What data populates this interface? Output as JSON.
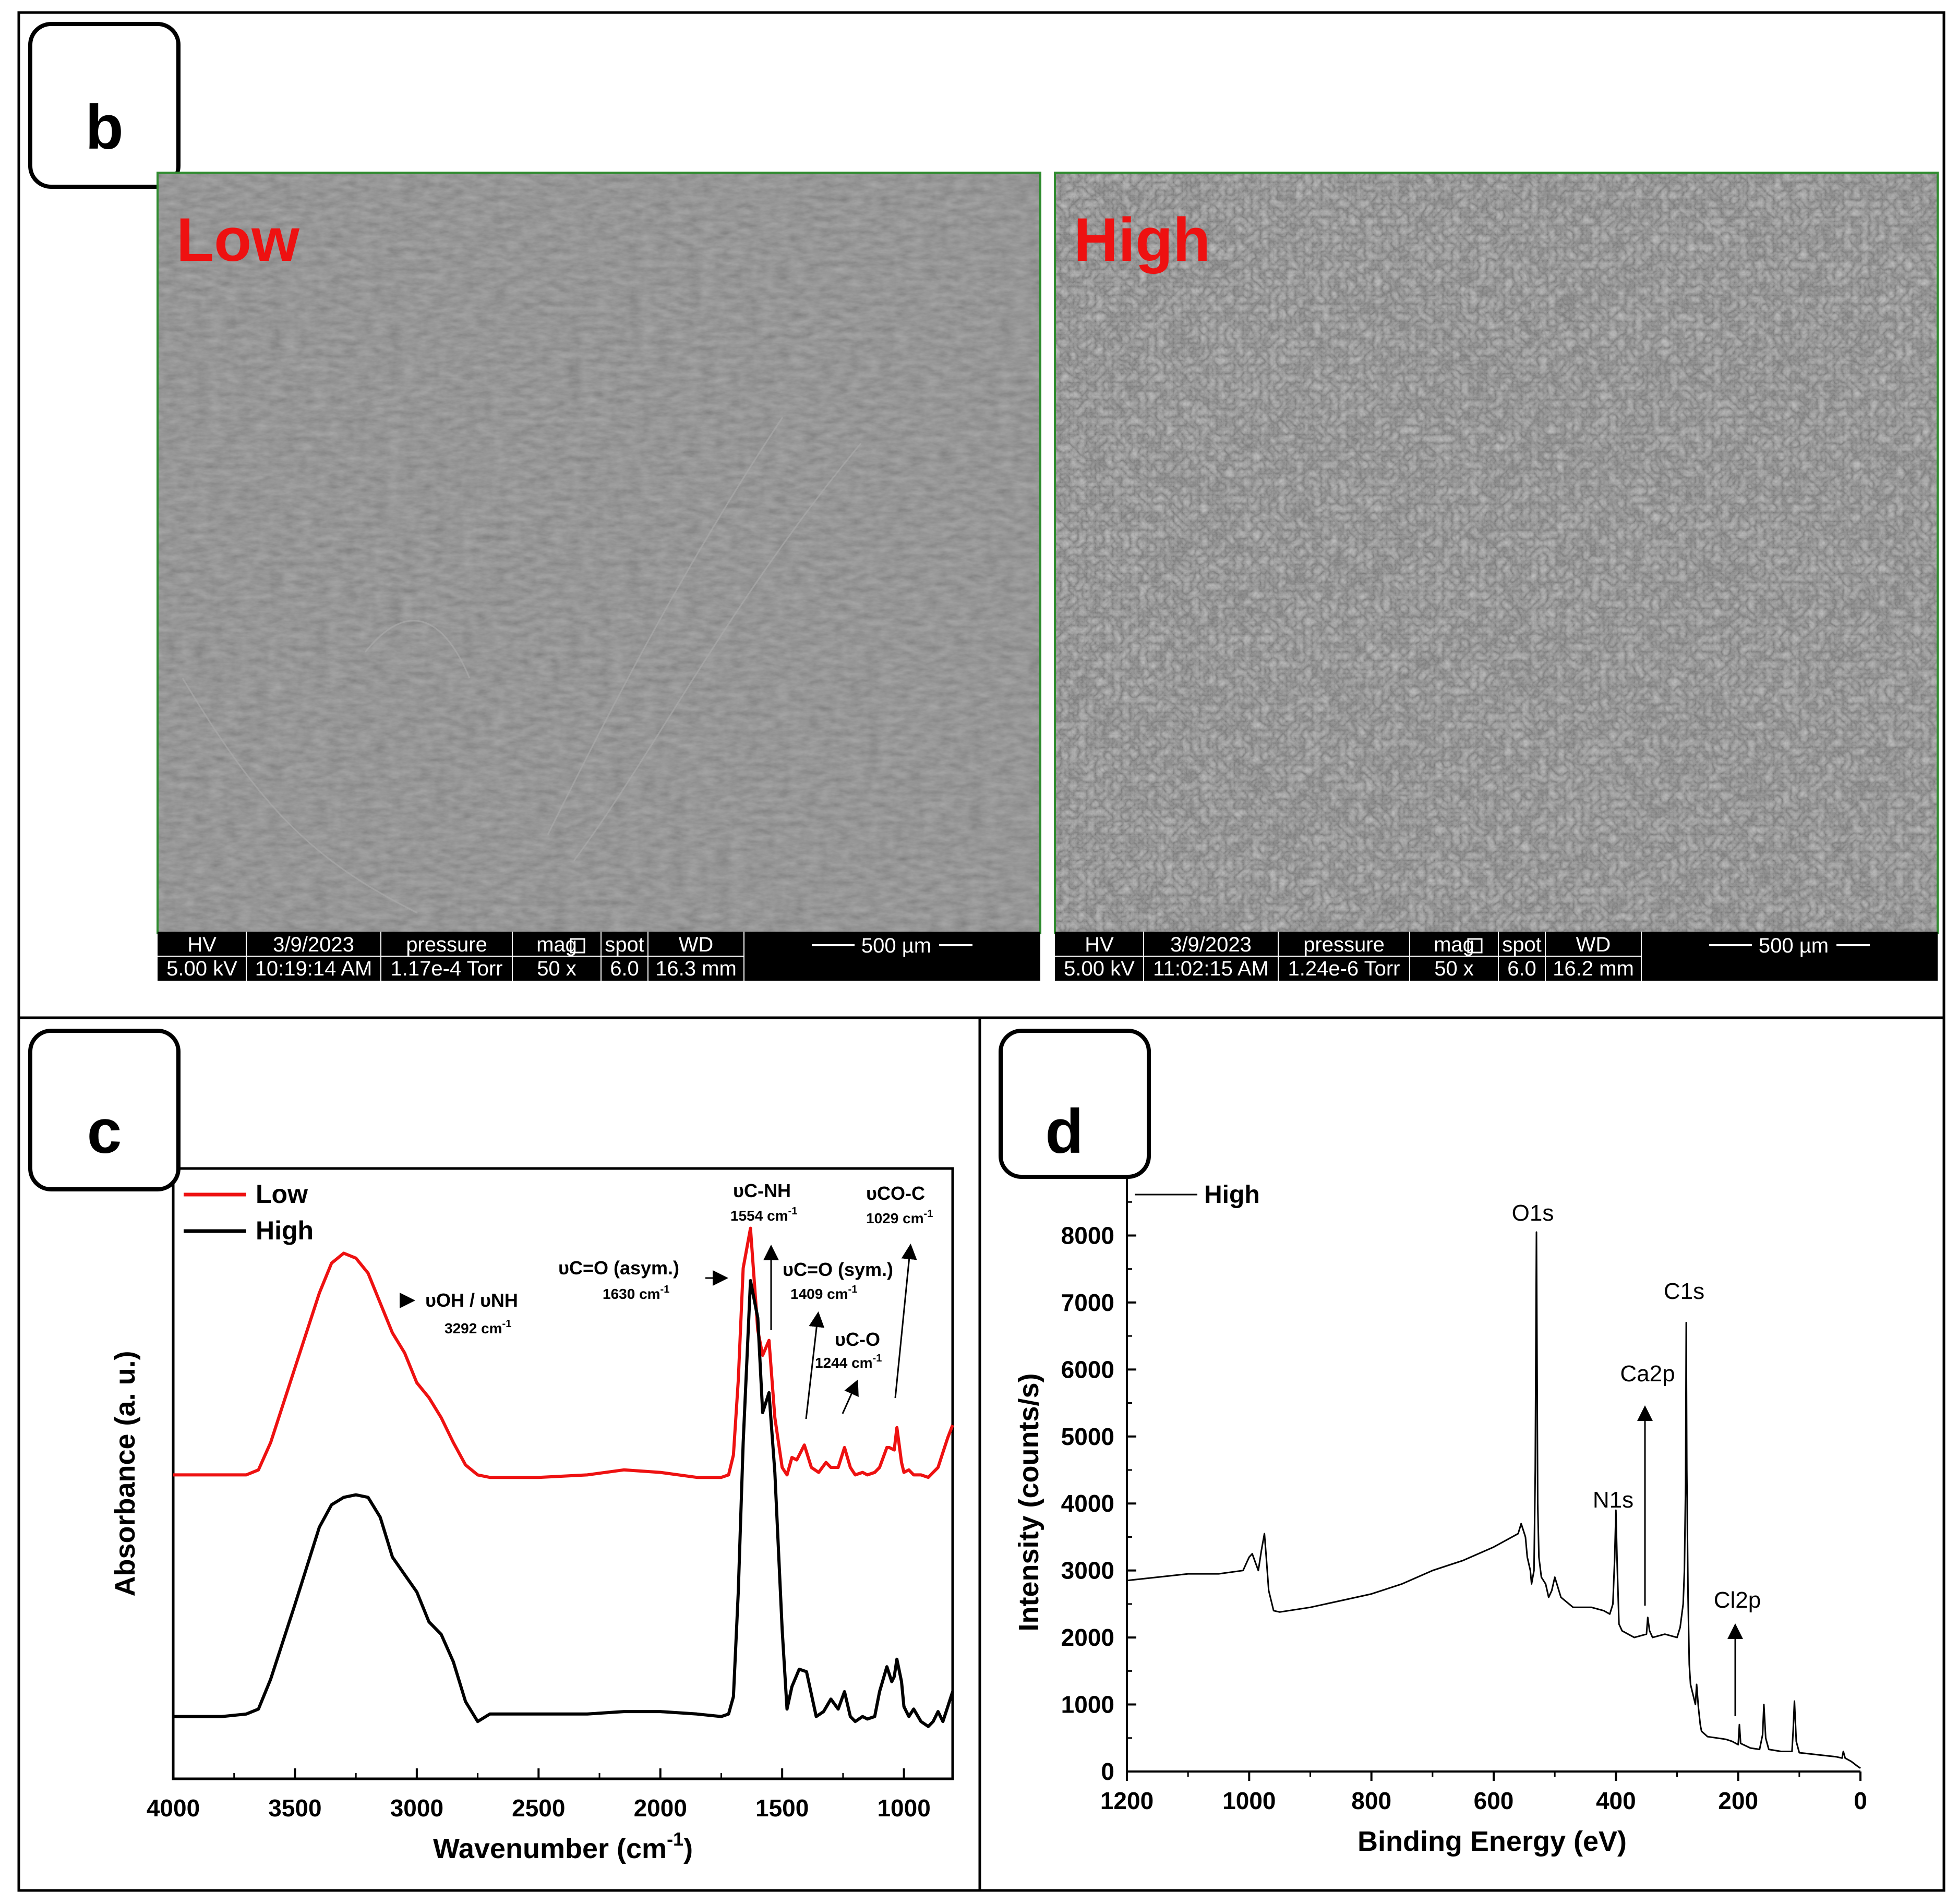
{
  "panels": {
    "b": {
      "label": "b",
      "images": [
        {
          "tag": "Low",
          "footer": {
            "hv_label": "HV",
            "hv_value": "5.00 kV",
            "date_label": "3/9/2023",
            "time_value": "10:19:14 AM",
            "pressure_label": "pressure",
            "pressure_value": "1.17e-4 Torr",
            "mag_label": "mag",
            "mag_value": "50 x",
            "spot_label": "spot",
            "spot_value": "6.0",
            "wd_label": "WD",
            "wd_value": "16.3 mm",
            "scale_label": "500 µm"
          }
        },
        {
          "tag": "High",
          "footer": {
            "hv_label": "HV",
            "hv_value": "5.00 kV",
            "date_label": "3/9/2023",
            "time_value": "11:02:15 AM",
            "pressure_label": "pressure",
            "pressure_value": "1.24e-6 Torr",
            "mag_label": "mag",
            "mag_value": "50 x",
            "spot_label": "spot",
            "spot_value": "6.0",
            "wd_label": "WD",
            "wd_value": "16.2 mm",
            "scale_label": "500 µm"
          }
        }
      ]
    },
    "c": {
      "label": "c"
    },
    "d": {
      "label": "d"
    }
  },
  "colors": {
    "low": "#ee1111",
    "high": "#000000",
    "tag_red": "#ee1111",
    "sem_border": "#2e8b2e"
  },
  "chart_data": [
    {
      "type": "line",
      "panel": "c",
      "xlabel": "Wavenumber (cm",
      "xlabel_sup": "-1",
      "xlabel_end": ")",
      "ylabel": "Absorbance (a. u.)",
      "xlim": [
        4000,
        800
      ],
      "x_ticks": [
        4000,
        3500,
        3000,
        2500,
        2000,
        1500,
        1000
      ],
      "x_tick_labels": [
        "4000",
        "3500",
        "3000",
        "2500",
        "2000",
        "1500",
        "1000"
      ],
      "y_ticks_shown": false,
      "legend_position": "top-left",
      "series": [
        {
          "name": "Low",
          "color": "#ee1111",
          "x": [
            4000,
            3800,
            3700,
            3650,
            3600,
            3500,
            3400,
            3350,
            3300,
            3250,
            3200,
            3150,
            3100,
            3050,
            3000,
            2950,
            2900,
            2850,
            2800,
            2750,
            2700,
            2500,
            2300,
            2150,
            2000,
            1850,
            1750,
            1720,
            1700,
            1680,
            1660,
            1630,
            1600,
            1580,
            1554,
            1530,
            1500,
            1480,
            1460,
            1440,
            1409,
            1380,
            1350,
            1320,
            1300,
            1270,
            1244,
            1220,
            1200,
            1170,
            1150,
            1120,
            1100,
            1070,
            1060,
            1040,
            1029,
            1010,
            1000,
            980,
            960,
            930,
            900,
            880,
            860,
            840,
            820,
            800
          ],
          "y": [
            1.07,
            1.07,
            1.07,
            1.09,
            1.2,
            1.5,
            1.8,
            1.92,
            1.96,
            1.94,
            1.88,
            1.76,
            1.64,
            1.56,
            1.44,
            1.38,
            1.3,
            1.2,
            1.11,
            1.07,
            1.06,
            1.06,
            1.07,
            1.09,
            1.08,
            1.06,
            1.06,
            1.07,
            1.15,
            1.45,
            1.9,
            2.06,
            1.65,
            1.55,
            1.61,
            1.3,
            1.1,
            1.07,
            1.14,
            1.13,
            1.19,
            1.1,
            1.08,
            1.12,
            1.1,
            1.1,
            1.18,
            1.1,
            1.07,
            1.08,
            1.07,
            1.08,
            1.1,
            1.18,
            1.18,
            1.17,
            1.26,
            1.12,
            1.08,
            1.09,
            1.07,
            1.07,
            1.06,
            1.08,
            1.1,
            1.16,
            1.22,
            1.27
          ]
        },
        {
          "name": "High",
          "color": "#000000",
          "x": [
            4000,
            3800,
            3700,
            3650,
            3600,
            3500,
            3400,
            3350,
            3300,
            3250,
            3200,
            3150,
            3100,
            3050,
            3000,
            2950,
            2900,
            2850,
            2800,
            2750,
            2700,
            2500,
            2300,
            2150,
            2000,
            1850,
            1750,
            1720,
            1700,
            1680,
            1660,
            1630,
            1600,
            1580,
            1554,
            1530,
            1500,
            1480,
            1460,
            1430,
            1400,
            1360,
            1330,
            1300,
            1270,
            1244,
            1220,
            1200,
            1170,
            1150,
            1120,
            1100,
            1070,
            1050,
            1040,
            1029,
            1010,
            1000,
            980,
            960,
            930,
            900,
            880,
            860,
            840,
            820,
            800
          ],
          "y": [
            0.1,
            0.1,
            0.11,
            0.13,
            0.25,
            0.55,
            0.86,
            0.95,
            0.98,
            0.99,
            0.98,
            0.9,
            0.74,
            0.67,
            0.6,
            0.48,
            0.43,
            0.32,
            0.16,
            0.08,
            0.11,
            0.11,
            0.11,
            0.12,
            0.12,
            0.11,
            0.1,
            0.11,
            0.18,
            0.6,
            1.2,
            1.85,
            1.7,
            1.32,
            1.4,
            1.08,
            0.45,
            0.13,
            0.22,
            0.29,
            0.28,
            0.1,
            0.12,
            0.17,
            0.13,
            0.2,
            0.1,
            0.08,
            0.1,
            0.09,
            0.1,
            0.2,
            0.3,
            0.24,
            0.26,
            0.33,
            0.24,
            0.14,
            0.1,
            0.13,
            0.08,
            0.06,
            0.08,
            0.12,
            0.08,
            0.14,
            0.2
          ]
        }
      ],
      "ylim": [
        -0.15,
        2.3
      ],
      "annotations": [
        {
          "text": "υOH / υNH",
          "sub": "3292 cm",
          "sub_sup": "-1"
        },
        {
          "text": "υC=O (asym.)",
          "sub": "1630 cm",
          "sub_sup": "-1"
        },
        {
          "text": "υC-NH",
          "sub": "1554 cm",
          "sub_sup": "-1"
        },
        {
          "text": "υC=O (sym.)",
          "sub": "1409 cm",
          "sub_sup": "-1"
        },
        {
          "text": "υC-O",
          "sub": "1244 cm",
          "sub_sup": "-1"
        },
        {
          "text": "υCO-C",
          "sub": "1029 cm",
          "sub_sup": "-1"
        }
      ]
    },
    {
      "type": "line",
      "panel": "d",
      "xlabel": "Binding Energy (eV)",
      "ylabel": "Intensity (counts/s)",
      "xlim": [
        1200,
        0
      ],
      "ylim": [
        0,
        9000
      ],
      "x_ticks": [
        1200,
        1000,
        800,
        600,
        400,
        200,
        0
      ],
      "x_tick_labels": [
        "1200",
        "1000",
        "800",
        "600",
        "400",
        "200",
        "0"
      ],
      "y_ticks": [
        0,
        1000,
        2000,
        3000,
        4000,
        5000,
        6000,
        7000,
        8000
      ],
      "y_tick_labels": [
        "0",
        "1000",
        "2000",
        "3000",
        "4000",
        "5000",
        "6000",
        "7000",
        "8000"
      ],
      "legend_position": "top-left",
      "series": [
        {
          "name": "High",
          "color": "#000000",
          "x": [
            1200,
            1150,
            1100,
            1050,
            1010,
            1000,
            995,
            985,
            980,
            975,
            972,
            968,
            960,
            950,
            900,
            850,
            800,
            750,
            700,
            650,
            600,
            570,
            560,
            555,
            548,
            545,
            540,
            538,
            534,
            532,
            530,
            528,
            526,
            522,
            515,
            510,
            505,
            500,
            490,
            470,
            440,
            420,
            410,
            405,
            402,
            400,
            398,
            395,
            390,
            370,
            350,
            348,
            345,
            340,
            320,
            300,
            295,
            290,
            288,
            286,
            285,
            284,
            282,
            280,
            278,
            270,
            268,
            265,
            262,
            260,
            250,
            220,
            210,
            200,
            198,
            196,
            180,
            165,
            160,
            158,
            155,
            150,
            130,
            112,
            110,
            108,
            105,
            100,
            90,
            70,
            40,
            30,
            28,
            25,
            15,
            5,
            0
          ],
          "y": [
            2850,
            2900,
            2950,
            2950,
            3000,
            3200,
            3250,
            3000,
            3300,
            3550,
            3200,
            2700,
            2400,
            2380,
            2450,
            2550,
            2650,
            2800,
            3000,
            3150,
            3350,
            3500,
            3550,
            3700,
            3500,
            3200,
            3000,
            2800,
            3000,
            4500,
            8050,
            4000,
            3200,
            2900,
            2800,
            2600,
            2700,
            2900,
            2600,
            2450,
            2450,
            2400,
            2350,
            2500,
            3200,
            3900,
            3100,
            2200,
            2100,
            2000,
            2050,
            2300,
            2100,
            2000,
            2050,
            2000,
            2150,
            2500,
            3000,
            4300,
            6700,
            4500,
            2600,
            1600,
            1300,
            1000,
            1300,
            950,
            700,
            600,
            520,
            480,
            450,
            400,
            700,
            420,
            350,
            330,
            550,
            1000,
            500,
            330,
            300,
            300,
            620,
            1050,
            450,
            280,
            270,
            250,
            220,
            200,
            300,
            200,
            150,
            80,
            50
          ]
        }
      ],
      "peak_labels": [
        {
          "text": "O1s"
        },
        {
          "text": "C1s"
        },
        {
          "text": "Ca2p"
        },
        {
          "text": "N1s"
        },
        {
          "text": "Cl2p"
        }
      ]
    }
  ]
}
